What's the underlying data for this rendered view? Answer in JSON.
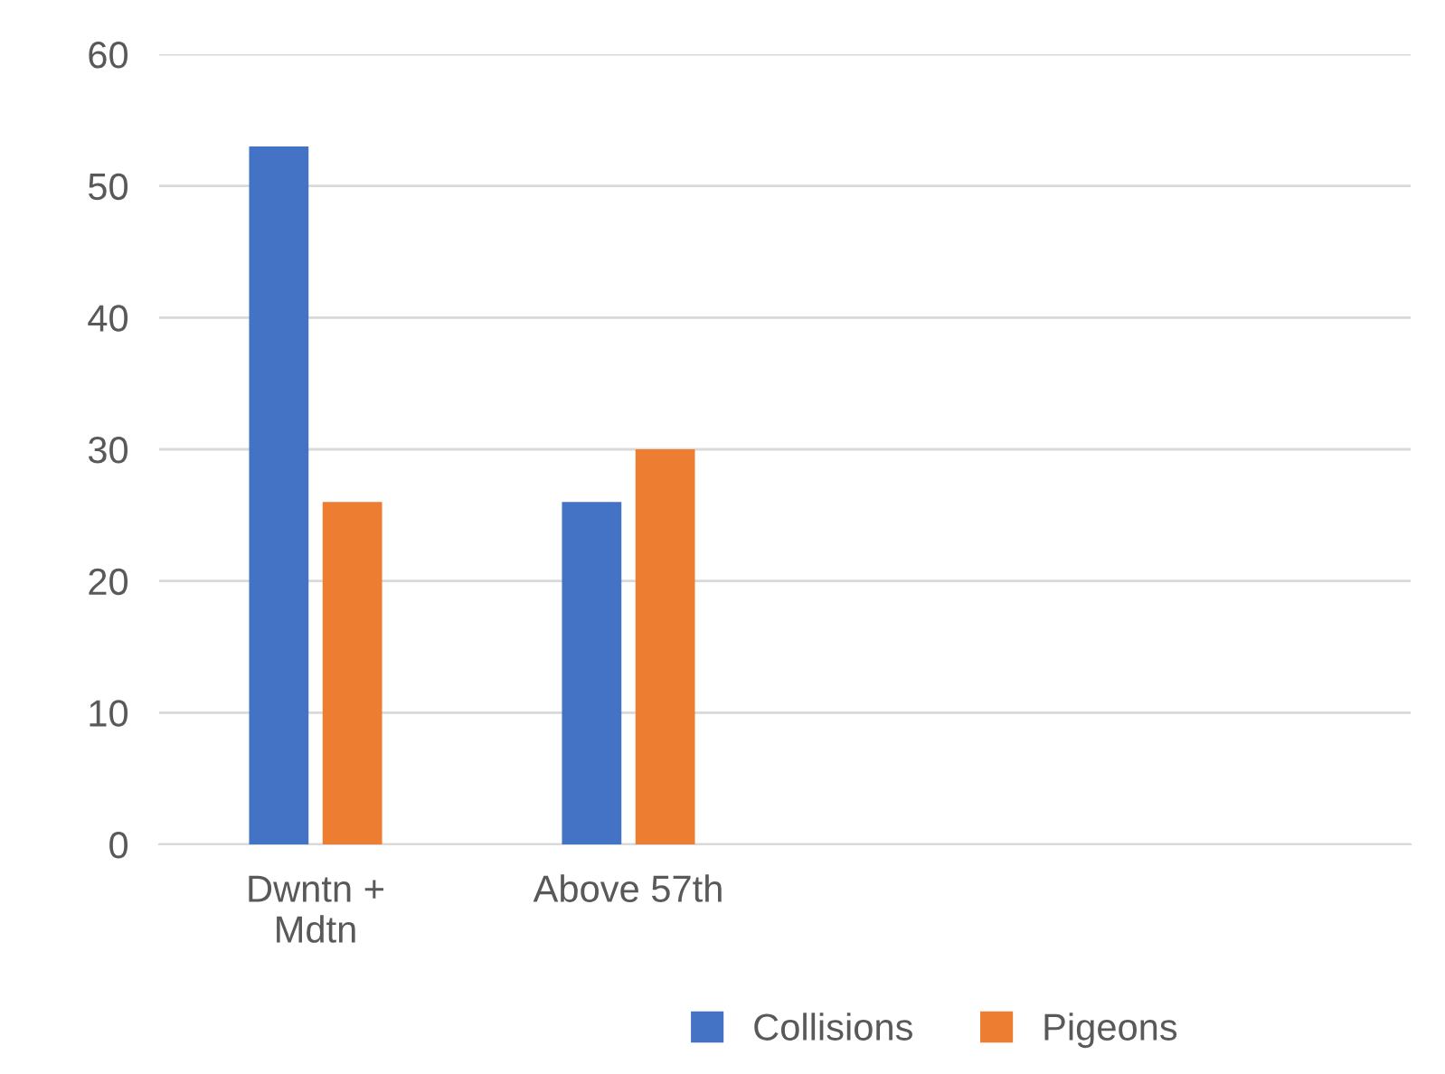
{
  "chart_data": {
    "type": "bar",
    "categories": [
      "Dwntn +\nMdtn",
      "Above 57th",
      null,
      null
    ],
    "series": [
      {
        "name": "Collisions",
        "color": "#4472c4",
        "values": [
          53,
          26,
          null,
          null
        ]
      },
      {
        "name": "Pigeons",
        "color": "#ed7d31",
        "values": [
          26,
          30,
          null,
          null
        ]
      }
    ],
    "ylim": [
      0,
      60
    ],
    "yticks": [
      0,
      10,
      20,
      30,
      40,
      50,
      60
    ],
    "grid": "y",
    "legend": "bottom"
  }
}
